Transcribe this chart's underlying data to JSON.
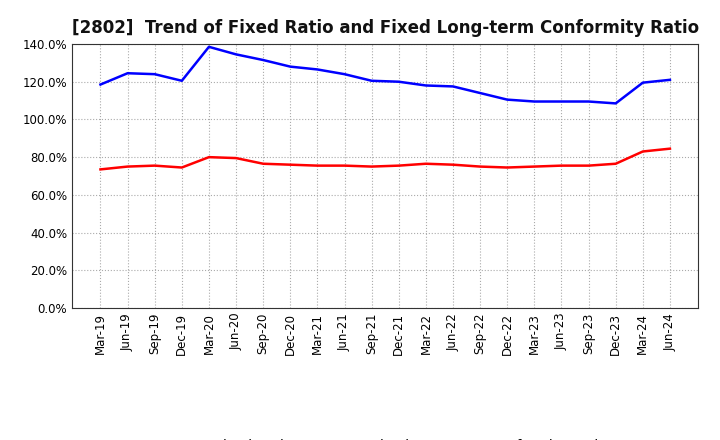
{
  "title": "[2802]  Trend of Fixed Ratio and Fixed Long-term Conformity Ratio",
  "x_labels": [
    "Mar-19",
    "Jun-19",
    "Sep-19",
    "Dec-19",
    "Mar-20",
    "Jun-20",
    "Sep-20",
    "Dec-20",
    "Mar-21",
    "Jun-21",
    "Sep-21",
    "Dec-21",
    "Mar-22",
    "Jun-22",
    "Sep-22",
    "Dec-22",
    "Mar-23",
    "Jun-23",
    "Sep-23",
    "Dec-23",
    "Mar-24",
    "Jun-24"
  ],
  "fixed_ratio": [
    118.5,
    124.5,
    124.0,
    120.5,
    138.5,
    134.5,
    131.5,
    128.0,
    126.5,
    124.0,
    120.5,
    120.0,
    118.0,
    117.5,
    114.0,
    110.5,
    109.5,
    109.5,
    109.5,
    108.5,
    119.5,
    121.0
  ],
  "fixed_lt_ratio": [
    73.5,
    75.0,
    75.5,
    74.5,
    80.0,
    79.5,
    76.5,
    76.0,
    75.5,
    75.5,
    75.0,
    75.5,
    76.5,
    76.0,
    75.0,
    74.5,
    75.0,
    75.5,
    75.5,
    76.5,
    83.0,
    84.5
  ],
  "fixed_ratio_color": "#0000FF",
  "fixed_lt_ratio_color": "#FF0000",
  "ylim": [
    0,
    140
  ],
  "yticks": [
    0,
    20,
    40,
    60,
    80,
    100,
    120,
    140
  ],
  "background_color": "#FFFFFF",
  "plot_bg_color": "#FFFFFF",
  "grid_color": "#AAAAAA",
  "legend_fixed_ratio": "Fixed Ratio",
  "legend_fixed_lt_ratio": "Fixed Long-term Conformity Ratio",
  "title_fontsize": 12,
  "axis_fontsize": 8.5,
  "legend_fontsize": 10,
  "line_width": 1.8
}
